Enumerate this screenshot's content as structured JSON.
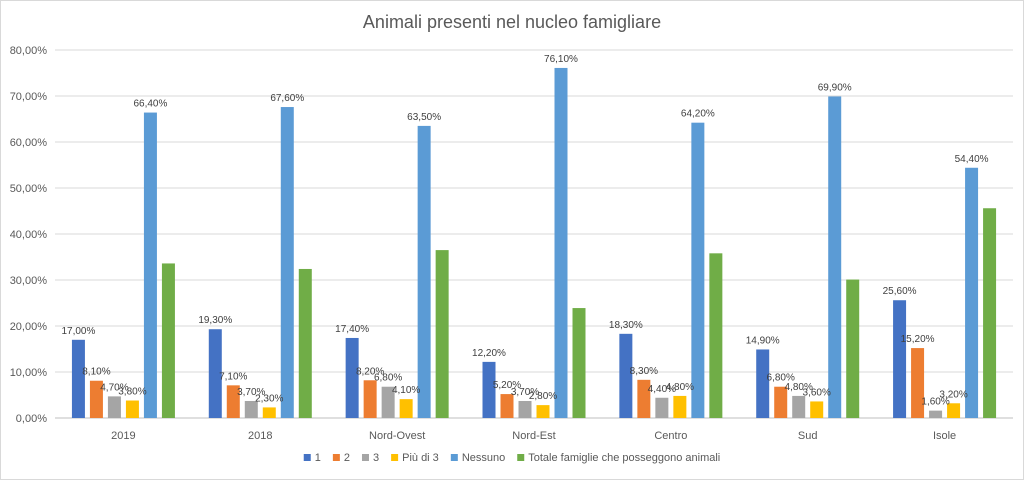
{
  "chart_data": {
    "type": "bar",
    "title": "Animali presenti nel nucleo famigliare",
    "xlabel": "",
    "ylabel": "",
    "ylim": [
      0,
      80
    ],
    "yticks": [
      "0,00%",
      "10,00%",
      "20,00%",
      "30,00%",
      "40,00%",
      "50,00%",
      "60,00%",
      "70,00%",
      "80,00%"
    ],
    "grid": true,
    "legend_position": "bottom",
    "categories": [
      "2019",
      "2018",
      "Nord-Ovest",
      "Nord-Est",
      "Centro",
      "Sud",
      "Isole"
    ],
    "series": [
      {
        "name": "1",
        "color": "#4472C4",
        "values": [
          17.0,
          19.3,
          17.4,
          12.2,
          18.3,
          14.9,
          25.6
        ],
        "labels": [
          "17,00%",
          "19,30%",
          "17,40%",
          "12,20%",
          "18,30%",
          "14,90%",
          "25,60%"
        ]
      },
      {
        "name": "2",
        "color": "#ED7D31",
        "values": [
          8.1,
          7.1,
          8.2,
          5.2,
          8.3,
          6.8,
          15.2
        ],
        "labels": [
          "8,10%",
          "7,10%",
          "8,20%",
          "5,20%",
          "8,30%",
          "6,80%",
          "15,20%"
        ]
      },
      {
        "name": "3",
        "color": "#A5A5A5",
        "values": [
          4.7,
          3.7,
          6.8,
          3.7,
          4.4,
          4.8,
          1.6
        ],
        "labels": [
          "4,70%",
          "3,70%",
          "6,80%",
          "3,70%",
          "4,40%",
          "4,80%",
          "1,60%"
        ]
      },
      {
        "name": "Più di 3",
        "color": "#FFC000",
        "values": [
          3.8,
          2.3,
          4.1,
          2.8,
          4.8,
          3.6,
          3.2
        ],
        "labels": [
          "3,80%",
          "2,30%",
          "4,10%",
          "2,80%",
          "4,80%",
          "3,60%",
          "3,20%"
        ]
      },
      {
        "name": "Nessuno",
        "color": "#5B9BD5",
        "values": [
          66.4,
          67.6,
          63.5,
          76.1,
          64.2,
          69.9,
          54.4
        ],
        "labels": [
          "66,40%",
          "67,60%",
          "63,50%",
          "76,10%",
          "64,20%",
          "69,90%",
          "54,40%"
        ]
      },
      {
        "name": "Totale famiglie che posseggono animali",
        "color": "#70AD47",
        "values": [
          33.6,
          32.4,
          36.5,
          23.9,
          35.8,
          30.1,
          45.6
        ],
        "labels": [
          "",
          "",
          "",
          "",
          "",
          "",
          ""
        ]
      }
    ]
  }
}
